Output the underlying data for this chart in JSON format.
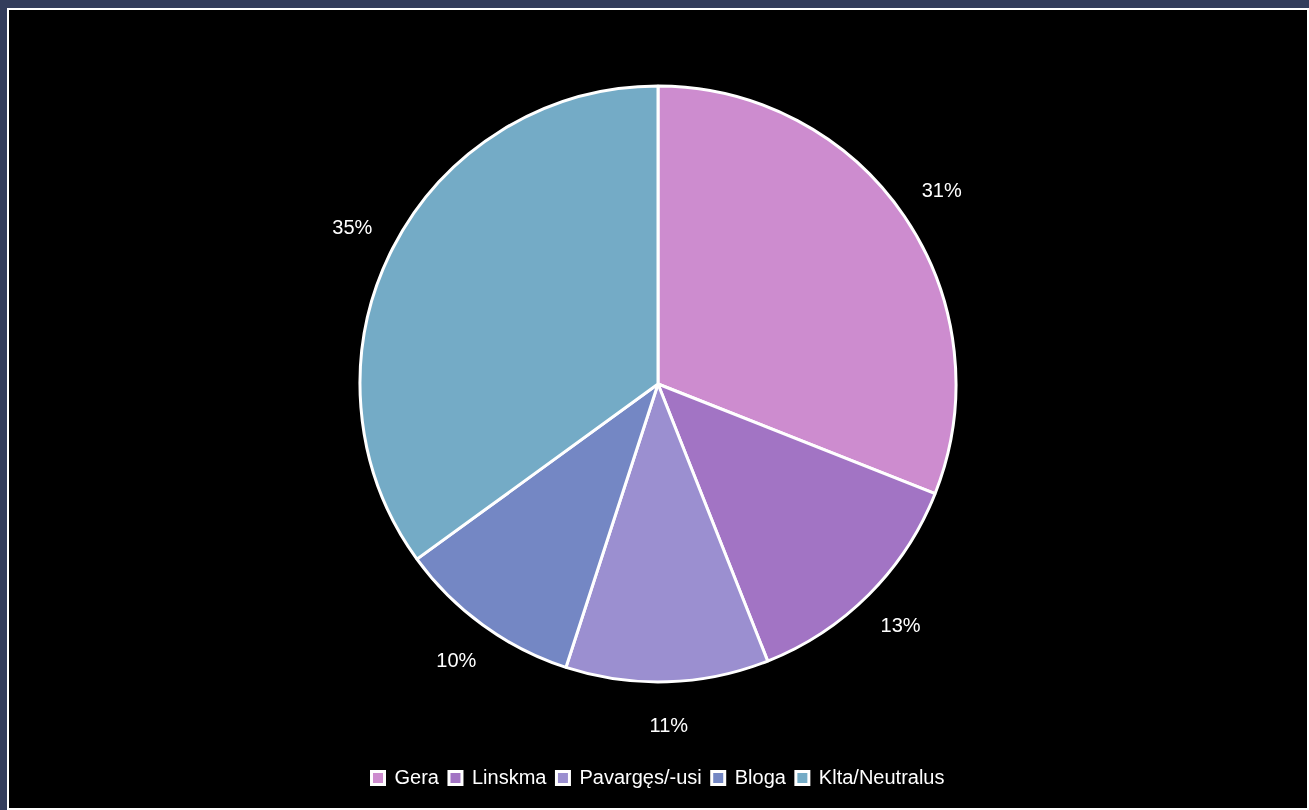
{
  "chart_data": {
    "type": "pie",
    "categories": [
      "Gera",
      "Linskma",
      "Pavargęs/-usi",
      "Bloga",
      "Klta/Neutralus"
    ],
    "values": [
      31,
      13,
      11,
      10,
      35
    ],
    "colors": [
      "#cd8ccf",
      "#a274c4",
      "#9b8fd0",
      "#7487c4",
      "#74abc6"
    ],
    "value_labels": [
      "31%",
      "13%",
      "11%",
      "10%",
      "35%"
    ],
    "legend": "bottom"
  }
}
